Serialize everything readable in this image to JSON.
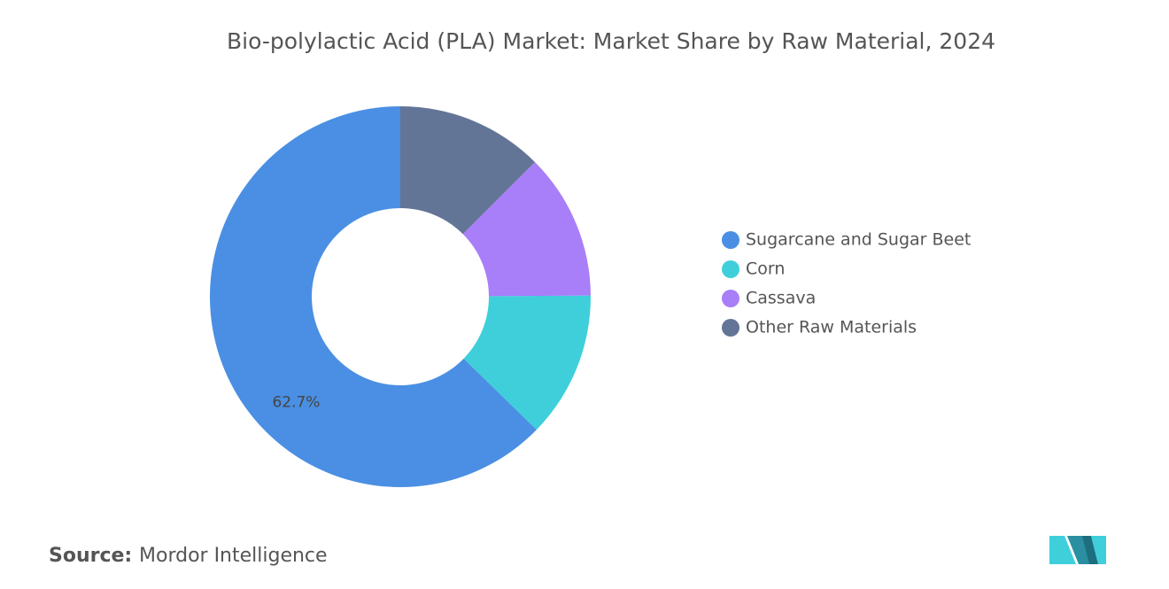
{
  "chart_data": {
    "type": "donut",
    "title": "Bio-polylactic Acid (PLA) Market: Market Share by Raw Material, 2024",
    "categories": [
      "Sugarcane and Sugar Beet",
      "Corn",
      "Cassava",
      "Other Raw Materials"
    ],
    "values": [
      62.7,
      12.4,
      12.4,
      12.5
    ],
    "value_labels": [
      "62.7%",
      null,
      null,
      null
    ],
    "colors": [
      "#4a8fe3",
      "#3fcfdb",
      "#a87ef9",
      "#637596"
    ],
    "legend": "right",
    "source_label": "Source:",
    "source": "Mordor Intelligence"
  }
}
